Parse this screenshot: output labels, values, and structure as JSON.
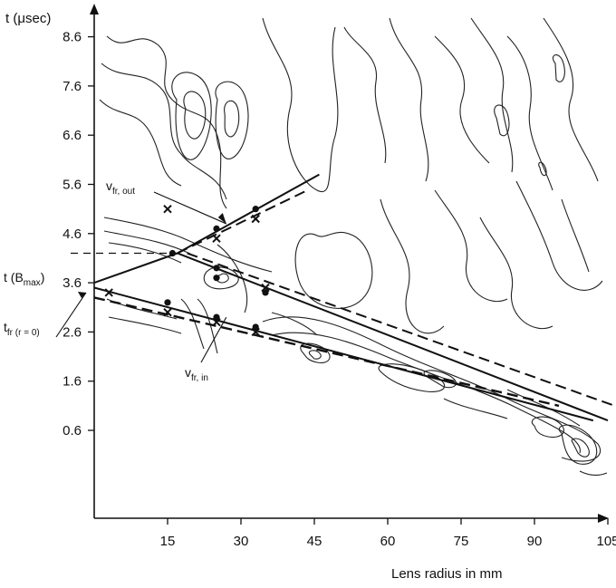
{
  "chart_data": {
    "type": "contour",
    "xlabel": "Lens radius in mm",
    "ylabel": "t (μsec)",
    "x_ticks": [
      "15",
      "30",
      "45",
      "60",
      "75",
      "90",
      "105"
    ],
    "y_ticks": [
      "0.6",
      "1.6",
      "2.6",
      "3.6",
      "4.6",
      "5.6",
      "6.6",
      "7.6",
      "8.6"
    ],
    "xlim": [
      0,
      125
    ],
    "ylim": [
      -1.6,
      9.7
    ],
    "annotations": {
      "t_bmax": {
        "main": "t (B",
        "sub": "max",
        "close": ")"
      },
      "t_fr": {
        "main": "t",
        "sub": "fr (r = 0)"
      },
      "v_fr_out": {
        "main": "v",
        "sub": "fr, out"
      },
      "v_fr_in": {
        "main": "v",
        "sub": "fr, in"
      }
    },
    "special_times": {
      "t_bmax": 4.2,
      "t_fr_r0": 3.4
    },
    "fronts": {
      "outward_solid": [
        [
          17,
          4.2
        ],
        [
          46,
          5.8
        ]
      ],
      "outward_dashed": [
        [
          17,
          4.2
        ],
        [
          44,
          5.5
        ]
      ],
      "inward_upper_solid": [
        [
          0,
          3.6
        ],
        [
          17,
          4.2
        ],
        [
          105,
          0.8
        ]
      ],
      "inward_upper_dashed": [
        [
          19,
          4.2
        ],
        [
          112,
          0.9
        ]
      ],
      "inward_lower_solid": [
        [
          0,
          3.5
        ],
        [
          102,
          0.8
        ]
      ],
      "inward_lower_dashed": [
        [
          0,
          3.3
        ],
        [
          95,
          1.1
        ]
      ]
    },
    "points_dot": [
      [
        15,
        3.2
      ],
      [
        16,
        4.2
      ],
      [
        25,
        4.7
      ],
      [
        25,
        3.9
      ],
      [
        25,
        3.7
      ],
      [
        25,
        2.9
      ],
      [
        33,
        5.1
      ],
      [
        33,
        2.7
      ],
      [
        35,
        3.4
      ]
    ],
    "points_cross": [
      [
        3,
        3.4
      ],
      [
        15,
        5.1
      ],
      [
        15,
        3.0
      ],
      [
        25,
        4.5
      ],
      [
        25,
        2.8
      ],
      [
        33,
        4.9
      ],
      [
        33,
        2.6
      ],
      [
        35,
        3.5
      ]
    ]
  }
}
